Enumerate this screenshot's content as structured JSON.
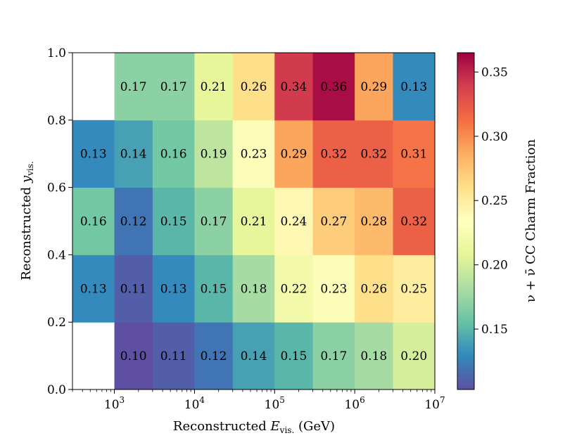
{
  "chart_data": {
    "type": "heatmap",
    "xlabel": "Reconstructed E_vis. (GeV)",
    "xlabel_parts": {
      "pre": "Reconstructed ",
      "sym": "E",
      "sub": "vis.",
      "post": " (GeV)"
    },
    "ylabel": "Reconstructed y_vis.",
    "ylabel_parts": {
      "pre": "Reconstructed ",
      "sym": "y",
      "sub": "vis."
    },
    "colorbar_label": "ν + ν̄ CC Charm Fraction",
    "x_scale": "log",
    "x_range": [
      300,
      10000000
    ],
    "x_ticks": [
      {
        "value": 1000,
        "base": "10",
        "exp": "3"
      },
      {
        "value": 10000,
        "base": "10",
        "exp": "4"
      },
      {
        "value": 100000,
        "base": "10",
        "exp": "5"
      },
      {
        "value": 1000000,
        "base": "10",
        "exp": "6"
      },
      {
        "value": 10000000,
        "base": "10",
        "exp": "7"
      }
    ],
    "y_range": [
      0.0,
      1.0
    ],
    "y_ticks": [
      "0.0",
      "0.2",
      "0.4",
      "0.6",
      "0.8",
      "1.0"
    ],
    "x_bin_edges": [
      300,
      1000,
      3000,
      10000,
      30000,
      100000,
      300000,
      1000000,
      3000000,
      10000000
    ],
    "y_bin_edges": [
      0.0,
      0.2,
      0.4,
      0.6,
      0.8,
      1.0
    ],
    "values": [
      [
        null,
        0.1,
        0.11,
        0.12,
        0.14,
        0.15,
        0.17,
        0.18,
        0.2
      ],
      [
        0.13,
        0.11,
        0.13,
        0.15,
        0.18,
        0.22,
        0.23,
        0.26,
        0.25
      ],
      [
        0.16,
        0.12,
        0.15,
        0.17,
        0.21,
        0.24,
        0.27,
        0.28,
        0.32
      ],
      [
        0.13,
        0.14,
        0.16,
        0.19,
        0.23,
        0.29,
        0.32,
        0.32,
        0.31
      ],
      [
        null,
        0.17,
        0.17,
        0.21,
        0.26,
        0.34,
        0.36,
        0.29,
        0.13
      ]
    ],
    "value_labels": [
      [
        "",
        "0.10",
        "0.11",
        "0.12",
        "0.14",
        "0.15",
        "0.17",
        "0.18",
        "0.20"
      ],
      [
        "0.13",
        "0.11",
        "0.13",
        "0.15",
        "0.18",
        "0.22",
        "0.23",
        "0.26",
        "0.25"
      ],
      [
        "0.16",
        "0.12",
        "0.15",
        "0.17",
        "0.21",
        "0.24",
        "0.27",
        "0.28",
        "0.32"
      ],
      [
        "0.13",
        "0.14",
        "0.16",
        "0.19",
        "0.23",
        "0.29",
        "0.32",
        "0.32",
        "0.31"
      ],
      [
        "",
        "0.17",
        "0.17",
        "0.21",
        "0.26",
        "0.34",
        "0.36",
        "0.29",
        "0.13"
      ]
    ],
    "colormap": "Spectral_r",
    "color_range": [
      0.103,
      0.365
    ],
    "colorbar_ticks": [
      "0.15",
      "0.20",
      "0.25",
      "0.30",
      "0.35"
    ]
  }
}
